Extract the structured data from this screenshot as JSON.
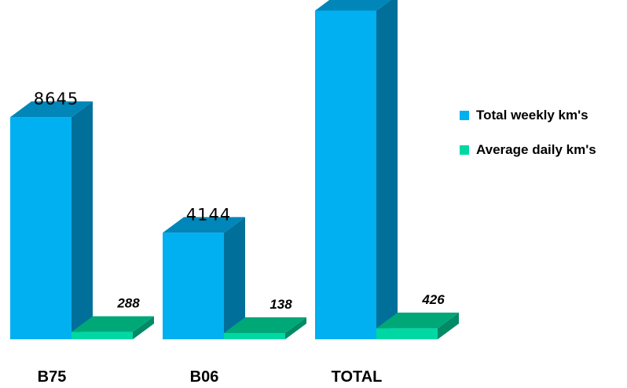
{
  "colors": {
    "weekly_front": "#00b0f0",
    "weekly_side": "#00709a",
    "weekly_top": "#0086b8",
    "daily_front": "#00d8a4",
    "daily_side": "#008a66",
    "daily_top": "#00a878"
  },
  "chart_data": {
    "type": "bar",
    "categories": [
      "B75",
      "B06",
      "TOTAL"
    ],
    "series": [
      {
        "name": "Total weekly km's",
        "values": [
          8645,
          4144,
          12789
        ]
      },
      {
        "name": "Average daily km's",
        "values": [
          288,
          138,
          426
        ]
      }
    ],
    "title": "",
    "xlabel": "",
    "ylabel": "",
    "ylim": [
      0,
      13200
    ],
    "grid": false,
    "legend_position": "right",
    "bar_style": "3d"
  }
}
